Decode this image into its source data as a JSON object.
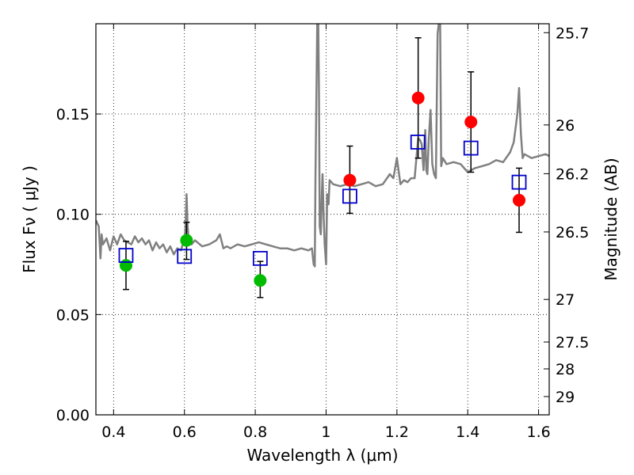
{
  "chart_data": {
    "type": "scatter",
    "xlabel": "Wavelength  λ (μm)",
    "ylabel": "Flux  Fν  ( μJy )",
    "y2label": "Magnitude (AB)",
    "xlim": [
      0.35,
      1.63
    ],
    "ylim": [
      0.0,
      0.195
    ],
    "grid": true,
    "x_ticks": [
      0.4,
      0.6,
      0.8,
      1.0,
      1.2,
      1.4,
      1.6
    ],
    "x_tick_labels": [
      "0.4",
      "0.6",
      "0.8",
      "1",
      "1.2",
      "1.4",
      "1.6"
    ],
    "y_ticks": [
      0.0,
      0.05,
      0.1,
      0.15
    ],
    "y_tick_labels": [
      "0.00",
      "0.05",
      "0.10",
      "0.15"
    ],
    "y2_ticks": [
      25.7,
      26,
      26.2,
      26.5,
      27,
      27.5,
      28,
      29
    ],
    "y2_tick_labels": [
      "25.7",
      "26",
      "26.2",
      "26.5",
      "27",
      "27.5",
      "28",
      "29"
    ],
    "model_spectrum": {
      "color": "#808080",
      "x": [
        0.35,
        0.358,
        0.363,
        0.366,
        0.37,
        0.38,
        0.39,
        0.4,
        0.41,
        0.42,
        0.43,
        0.44,
        0.45,
        0.46,
        0.47,
        0.48,
        0.49,
        0.5,
        0.51,
        0.52,
        0.53,
        0.54,
        0.55,
        0.56,
        0.57,
        0.58,
        0.59,
        0.595,
        0.6,
        0.603,
        0.606,
        0.609,
        0.612,
        0.62,
        0.63,
        0.65,
        0.67,
        0.69,
        0.7,
        0.71,
        0.72,
        0.73,
        0.75,
        0.77,
        0.79,
        0.81,
        0.83,
        0.85,
        0.87,
        0.89,
        0.91,
        0.93,
        0.95,
        0.96,
        0.965,
        0.968,
        0.97,
        0.975,
        0.978,
        0.98,
        0.982,
        0.985,
        0.988,
        0.99,
        0.993,
        0.996,
        1.0,
        1.003,
        1.007,
        1.01,
        1.02,
        1.04,
        1.06,
        1.08,
        1.1,
        1.12,
        1.14,
        1.16,
        1.18,
        1.19,
        1.2,
        1.21,
        1.22,
        1.23,
        1.24,
        1.25,
        1.26,
        1.265,
        1.27,
        1.275,
        1.28,
        1.283,
        1.286,
        1.29,
        1.295,
        1.3,
        1.305,
        1.31,
        1.315,
        1.318,
        1.322,
        1.325,
        1.33,
        1.34,
        1.36,
        1.38,
        1.4,
        1.42,
        1.44,
        1.46,
        1.48,
        1.5,
        1.52,
        1.53,
        1.54,
        1.545,
        1.55,
        1.555,
        1.56,
        1.58,
        1.6,
        1.62,
        1.63
      ],
      "y": [
        0.097,
        0.094,
        0.078,
        0.09,
        0.085,
        0.088,
        0.082,
        0.089,
        0.085,
        0.09,
        0.087,
        0.086,
        0.085,
        0.089,
        0.086,
        0.088,
        0.085,
        0.087,
        0.082,
        0.086,
        0.083,
        0.085,
        0.081,
        0.084,
        0.08,
        0.083,
        0.082,
        0.085,
        0.086,
        0.093,
        0.11,
        0.094,
        0.088,
        0.085,
        0.087,
        0.084,
        0.085,
        0.087,
        0.09,
        0.083,
        0.084,
        0.083,
        0.085,
        0.084,
        0.085,
        0.086,
        0.085,
        0.084,
        0.083,
        0.083,
        0.082,
        0.083,
        0.082,
        0.083,
        0.075,
        0.074,
        0.12,
        0.195,
        0.195,
        0.16,
        0.094,
        0.09,
        0.11,
        0.12,
        0.1,
        0.085,
        0.075,
        0.11,
        0.105,
        0.117,
        0.115,
        0.114,
        0.115,
        0.114,
        0.115,
        0.116,
        0.114,
        0.115,
        0.12,
        0.118,
        0.128,
        0.115,
        0.117,
        0.116,
        0.118,
        0.118,
        0.138,
        0.137,
        0.135,
        0.122,
        0.142,
        0.122,
        0.12,
        0.138,
        0.152,
        0.125,
        0.12,
        0.118,
        0.19,
        0.195,
        0.195,
        0.124,
        0.128,
        0.125,
        0.126,
        0.125,
        0.121,
        0.123,
        0.124,
        0.125,
        0.127,
        0.126,
        0.131,
        0.136,
        0.15,
        0.163,
        0.14,
        0.128,
        0.13,
        0.128,
        0.129,
        0.13,
        0.129
      ]
    },
    "series": [
      {
        "marker": "circle",
        "color": "#00bb00",
        "points": [
          {
            "x": 0.435,
            "y": 0.0745,
            "err_lo": 0.0625,
            "err_hi": 0.0865
          },
          {
            "x": 0.606,
            "y": 0.087,
            "err_lo": 0.0775,
            "err_hi": 0.096
          },
          {
            "x": 0.814,
            "y": 0.067,
            "err_lo": 0.0585,
            "err_hi": 0.0765
          }
        ]
      },
      {
        "marker": "circle",
        "color": "#ff0000",
        "points": [
          {
            "x": 1.067,
            "y": 0.117,
            "err_lo": 0.1005,
            "err_hi": 0.134
          },
          {
            "x": 1.26,
            "y": 0.158,
            "err_lo": 0.128,
            "err_hi": 0.188
          },
          {
            "x": 1.409,
            "y": 0.146,
            "err_lo": 0.121,
            "err_hi": 0.171
          },
          {
            "x": 1.545,
            "y": 0.107,
            "err_lo": 0.091,
            "err_hi": 0.123
          }
        ]
      },
      {
        "marker": "square",
        "color": "#0000cc",
        "points": [
          {
            "x": 0.435,
            "y": 0.0795
          },
          {
            "x": 0.6,
            "y": 0.079
          },
          {
            "x": 0.814,
            "y": 0.078
          },
          {
            "x": 1.067,
            "y": 0.109
          },
          {
            "x": 1.259,
            "y": 0.136
          },
          {
            "x": 1.409,
            "y": 0.133
          },
          {
            "x": 1.545,
            "y": 0.116
          }
        ]
      }
    ]
  }
}
